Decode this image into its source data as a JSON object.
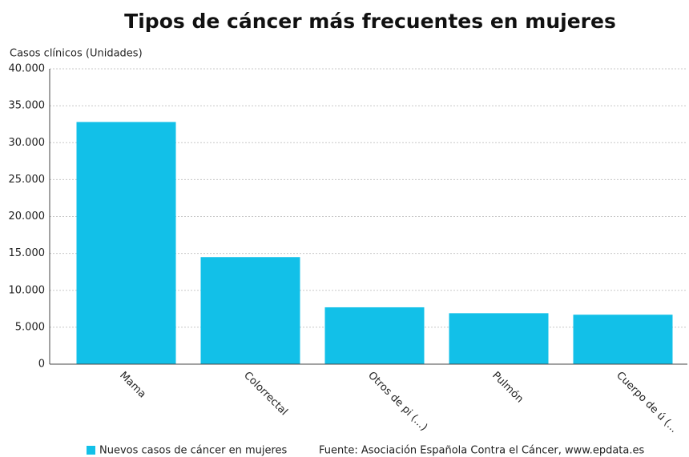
{
  "chart_data": {
    "type": "bar",
    "title": "Tipos de cáncer más frecuentes en mujeres",
    "y_axis_label": "Casos clínicos (Unidades)",
    "categories": [
      "Mama",
      "Colorrectal",
      "Otros de pi (...)",
      "Pulmón",
      "Cuerpo de ú (..."
    ],
    "series": [
      {
        "name": "Nuevos casos de cáncer en mujeres",
        "color": "#12c0e8",
        "values": [
          32800,
          14500,
          7700,
          6900,
          6700
        ]
      }
    ],
    "ylim": [
      0,
      40000
    ],
    "yticks": [
      0,
      {
        "value": 5000,
        "label": "5.000"
      },
      {
        "value": 10000,
        "label": "10.000"
      },
      {
        "value": 15000,
        "label": "15.000"
      },
      {
        "value": 20000,
        "label": "20.000"
      },
      {
        "value": 25000,
        "label": "25.000"
      },
      {
        "value": 30000,
        "label": "30.000"
      },
      {
        "value": 35000,
        "label": "35.000"
      },
      {
        "value": 40000,
        "label": "40.000"
      }
    ],
    "grid": true,
    "legend": "bottom",
    "source": "Fuente: Asociación Española Contra el Cáncer, www.epdata.es"
  }
}
